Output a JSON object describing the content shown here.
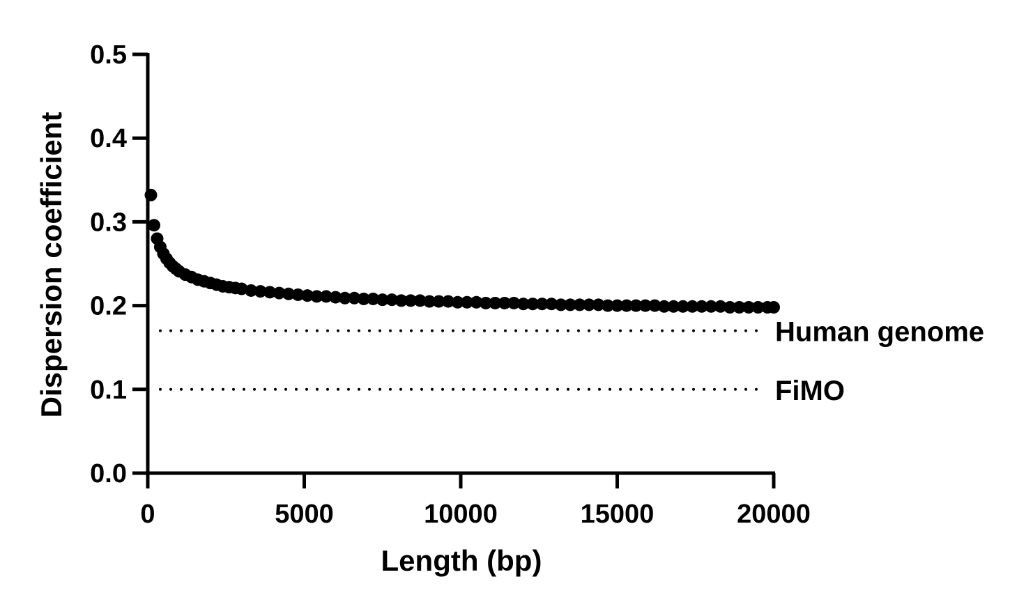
{
  "chart_data": {
    "type": "scatter",
    "title": "",
    "xlabel": "Length (bp)",
    "ylabel": "Dispersion coefficient",
    "xlim": [
      0,
      20000
    ],
    "ylim": [
      0,
      0.5
    ],
    "x_ticks": [
      0,
      5000,
      10000,
      15000,
      20000
    ],
    "y_ticks": [
      0.0,
      0.1,
      0.2,
      0.3,
      0.4,
      0.5
    ],
    "x_tick_labels": [
      "0",
      "5000",
      "10000",
      "15000",
      "20000"
    ],
    "y_tick_labels": [
      "0.0",
      "0.1",
      "0.2",
      "0.3",
      "0.4",
      "0.5"
    ],
    "grid": false,
    "legend": "none",
    "marker_color": "#000000",
    "series": [
      {
        "x": [
          100,
          200,
          300,
          400,
          500,
          600,
          700,
          800,
          900,
          1000,
          1200,
          1400,
          1600,
          1800,
          2000,
          2200,
          2400,
          2600,
          2800,
          3000,
          3300,
          3600,
          3900,
          4200,
          4500,
          4800,
          5100,
          5400,
          5700,
          6000,
          6300,
          6600,
          6900,
          7200,
          7500,
          7800,
          8100,
          8400,
          8700,
          9000,
          9300,
          9600,
          9900,
          10200,
          10500,
          10800,
          11100,
          11400,
          11700,
          12000,
          12300,
          12600,
          12900,
          13200,
          13500,
          13800,
          14100,
          14400,
          14700,
          15000,
          15300,
          15600,
          15900,
          16200,
          16500,
          16800,
          17100,
          17400,
          17700,
          18000,
          18300,
          18600,
          18900,
          19200,
          19500,
          19800,
          20000
        ],
        "y": [
          0.332,
          0.296,
          0.28,
          0.27,
          0.262,
          0.256,
          0.251,
          0.247,
          0.244,
          0.241,
          0.237,
          0.234,
          0.231,
          0.229,
          0.227,
          0.225,
          0.223,
          0.222,
          0.221,
          0.22,
          0.218,
          0.217,
          0.216,
          0.215,
          0.214,
          0.213,
          0.212,
          0.211,
          0.211,
          0.21,
          0.209,
          0.209,
          0.208,
          0.208,
          0.207,
          0.207,
          0.206,
          0.206,
          0.206,
          0.205,
          0.205,
          0.205,
          0.204,
          0.204,
          0.204,
          0.203,
          0.203,
          0.203,
          0.203,
          0.202,
          0.202,
          0.202,
          0.202,
          0.201,
          0.201,
          0.201,
          0.201,
          0.201,
          0.2,
          0.2,
          0.2,
          0.2,
          0.2,
          0.2,
          0.199,
          0.199,
          0.199,
          0.199,
          0.199,
          0.199,
          0.199,
          0.198,
          0.198,
          0.198,
          0.198,
          0.198,
          0.198
        ]
      }
    ],
    "reference_lines": [
      {
        "name": "Human genome",
        "y": 0.17,
        "style": "dotted"
      },
      {
        "name": "FiMO",
        "y": 0.1,
        "style": "dotted"
      }
    ]
  }
}
